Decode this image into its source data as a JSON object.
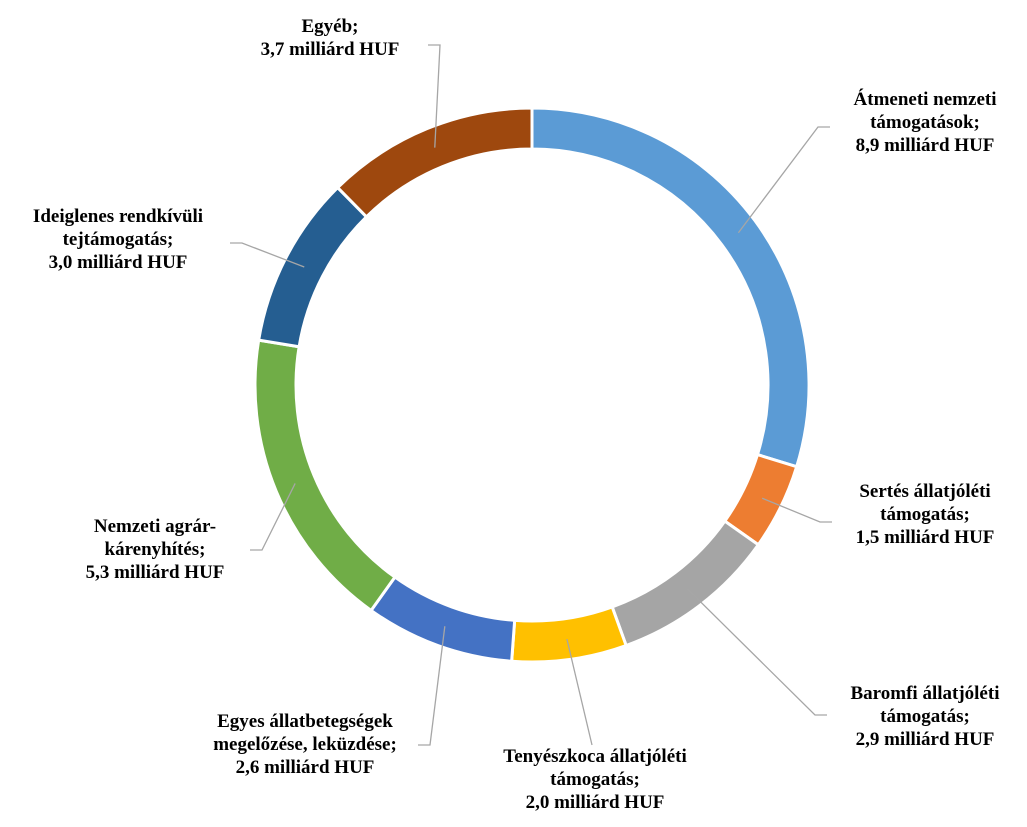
{
  "chart_data": {
    "type": "donut",
    "categories": [
      "Átmeneti nemzeti támogatások;",
      "Sertés állatjóléti támogatás;",
      "Baromfi állatjóléti támogatás;",
      "Tenyészkoca állatjóléti támogatás;",
      "Egyes állatbetegségek megelőzése, leküzdése;",
      "Nemzeti agrár-kárenyhítés;",
      "Ideiglenes rendkívüli tejtámogatás;",
      "Egyéb;"
    ],
    "values": [
      8.9,
      1.5,
      2.9,
      2.0,
      2.6,
      5.3,
      3.0,
      3.7
    ],
    "value_labels": [
      "8,9 milliárd HUF",
      "1,5 milliárd HUF",
      "2,9 milliárd HUF",
      "2,0 milliárd HUF",
      "2,6 milliárd HUF",
      "5,3 milliárd HUF",
      "3,0 milliárd HUF",
      "3,7 milliárd HUF"
    ],
    "colors": [
      "#5B9BD5",
      "#ED7D31",
      "#A5A5A5",
      "#FFC000",
      "#4472C4",
      "#70AD47",
      "#255E91",
      "#9E480E"
    ]
  }
}
